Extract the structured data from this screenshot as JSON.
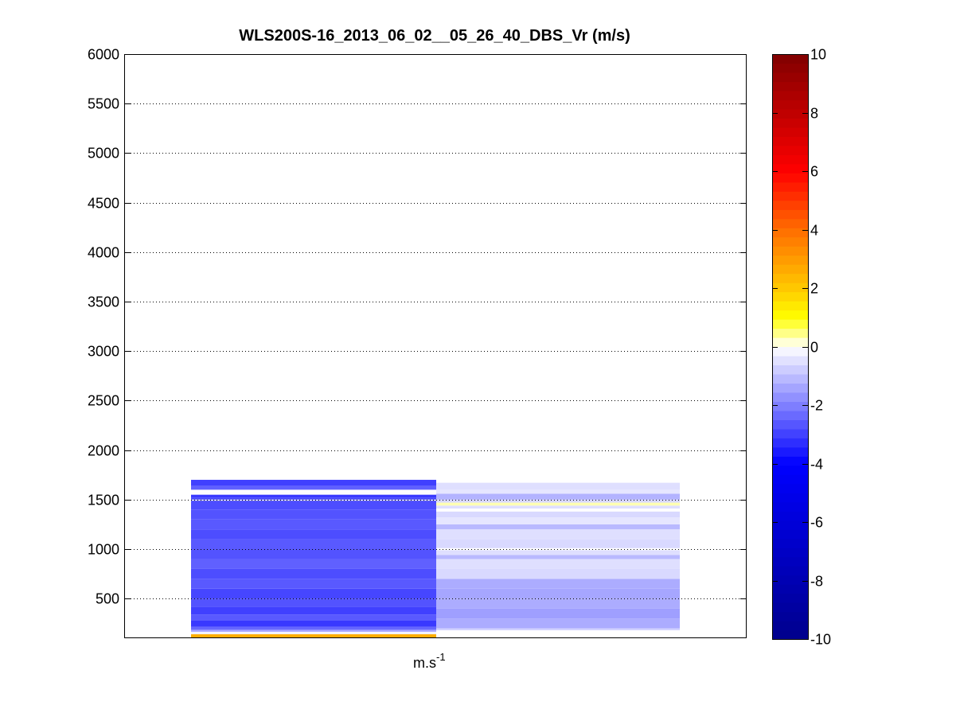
{
  "chart_data": {
    "type": "heatmap",
    "title": "WLS200S-16_2013_06_02__05_26_40_DBS_Vr (m/s)",
    "xlabel_base": "m.s",
    "xlabel_exp": "-1",
    "ylim": [
      100,
      6000
    ],
    "yticks": [
      500,
      1000,
      1500,
      2000,
      2500,
      3000,
      3500,
      4000,
      4500,
      5000,
      5500,
      6000
    ],
    "grid": true,
    "colorbar": {
      "range": [
        -10,
        10
      ],
      "ticks": [
        -10,
        -8,
        -6,
        -4,
        -2,
        0,
        2,
        4,
        6,
        8,
        10
      ]
    },
    "columns": [
      {
        "cells": [
          {
            "z0": 100,
            "z1": 140,
            "v": 2.6
          },
          {
            "z0": 140,
            "z1": 165,
            "v": -0.2
          },
          {
            "z0": 165,
            "z1": 185,
            "v": -1.4
          },
          {
            "z0": 185,
            "z1": 215,
            "v": -2.4
          },
          {
            "z0": 215,
            "z1": 280,
            "v": -3.1
          },
          {
            "z0": 280,
            "z1": 340,
            "v": -2.6
          },
          {
            "z0": 340,
            "z1": 420,
            "v": -3.0
          },
          {
            "z0": 420,
            "z1": 500,
            "v": -2.7
          },
          {
            "z0": 500,
            "z1": 600,
            "v": -2.9
          },
          {
            "z0": 600,
            "z1": 700,
            "v": -2.6
          },
          {
            "z0": 700,
            "z1": 800,
            "v": -2.8
          },
          {
            "z0": 800,
            "z1": 900,
            "v": -2.5
          },
          {
            "z0": 900,
            "z1": 1000,
            "v": -2.7
          },
          {
            "z0": 1000,
            "z1": 1100,
            "v": -2.6
          },
          {
            "z0": 1100,
            "z1": 1200,
            "v": -2.8
          },
          {
            "z0": 1200,
            "z1": 1300,
            "v": -2.6
          },
          {
            "z0": 1300,
            "z1": 1400,
            "v": -2.7
          },
          {
            "z0": 1400,
            "z1": 1490,
            "v": -2.8
          },
          {
            "z0": 1490,
            "z1": 1500,
            "v": 0
          },
          {
            "z0": 1500,
            "z1": 1520,
            "v": -2.9
          },
          {
            "z0": 1520,
            "z1": 1550,
            "v": -3.1
          },
          {
            "z0": 1550,
            "z1": 1600,
            "v": -0.05
          },
          {
            "z0": 1600,
            "z1": 1640,
            "v": -2.5
          },
          {
            "z0": 1640,
            "z1": 1700,
            "v": -3.0
          }
        ]
      },
      {
        "cells": [
          {
            "z0": 180,
            "z1": 200,
            "v": -0.7
          },
          {
            "z0": 200,
            "z1": 300,
            "v": -1.3
          },
          {
            "z0": 300,
            "z1": 400,
            "v": -1.5
          },
          {
            "z0": 400,
            "z1": 500,
            "v": -1.3
          },
          {
            "z0": 500,
            "z1": 600,
            "v": -1.4
          },
          {
            "z0": 600,
            "z1": 700,
            "v": -1.3
          },
          {
            "z0": 700,
            "z1": 800,
            "v": -0.6
          },
          {
            "z0": 800,
            "z1": 900,
            "v": -0.5
          },
          {
            "z0": 900,
            "z1": 940,
            "v": -1.1
          },
          {
            "z0": 940,
            "z1": 990,
            "v": -0.5
          },
          {
            "z0": 990,
            "z1": 1010,
            "v": 0
          },
          {
            "z0": 1010,
            "z1": 1100,
            "v": -0.6
          },
          {
            "z0": 1100,
            "z1": 1200,
            "v": -0.5
          },
          {
            "z0": 1200,
            "z1": 1250,
            "v": -1.1
          },
          {
            "z0": 1250,
            "z1": 1320,
            "v": -0.4
          },
          {
            "z0": 1320,
            "z1": 1380,
            "v": -0.6
          },
          {
            "z0": 1380,
            "z1": 1410,
            "v": 0
          },
          {
            "z0": 1410,
            "z1": 1440,
            "v": -0.5
          },
          {
            "z0": 1440,
            "z1": 1470,
            "v": 0.3
          },
          {
            "z0": 1470,
            "z1": 1500,
            "v": -0.6
          },
          {
            "z0": 1500,
            "z1": 1560,
            "v": -1.2
          },
          {
            "z0": 1560,
            "z1": 1600,
            "v": -0.4
          },
          {
            "z0": 1600,
            "z1": 1670,
            "v": -0.5
          }
        ]
      }
    ]
  }
}
